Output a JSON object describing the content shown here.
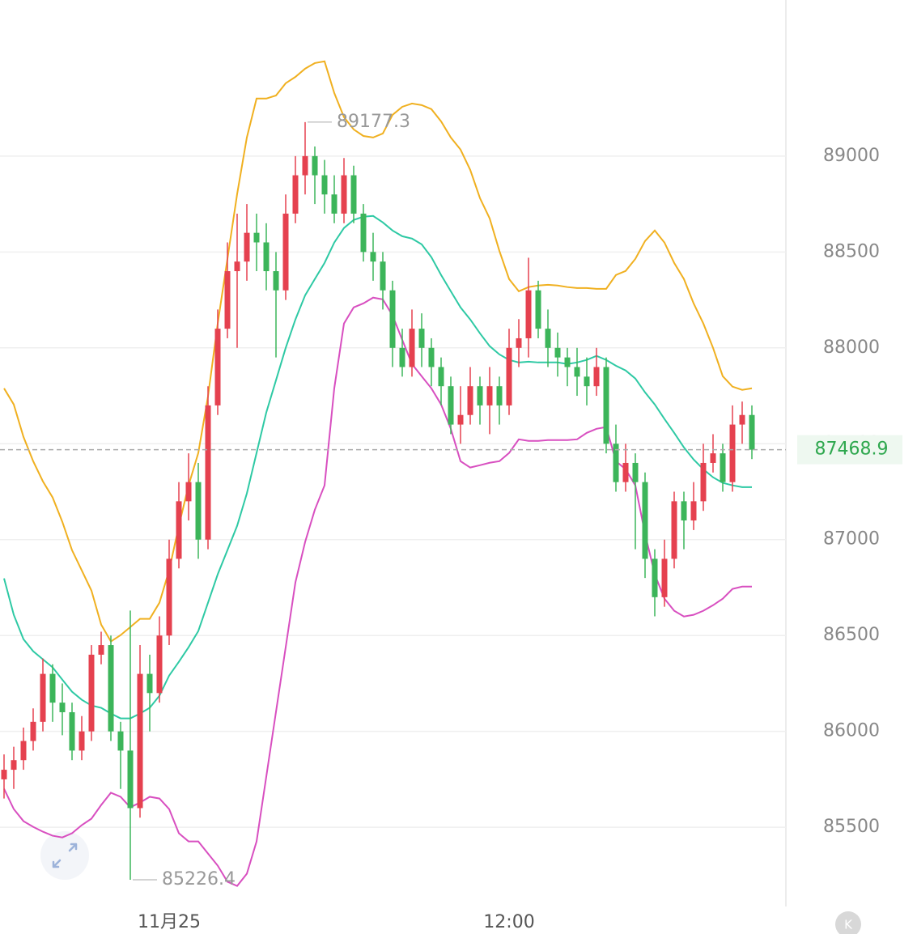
{
  "chart_data": {
    "type": "candlestick",
    "categories": [
      null,
      null,
      null,
      null,
      null,
      null,
      null,
      null,
      null,
      null,
      null,
      null,
      null,
      null,
      null,
      null,
      null,
      "11月25",
      null,
      null,
      null,
      null,
      null,
      null,
      null,
      null,
      null,
      null,
      null,
      null,
      null,
      null,
      null,
      null,
      null,
      null,
      null,
      null,
      null,
      null,
      null,
      null,
      null,
      null,
      null,
      null,
      null,
      null,
      null,
      null,
      null,
      null,
      "12:00",
      null,
      null,
      null,
      null,
      null,
      null,
      null,
      null,
      null,
      null,
      null,
      null,
      null,
      null,
      null,
      null,
      null,
      null,
      null,
      null,
      null,
      null,
      null,
      null,
      null
    ],
    "open": [
      85750,
      85800,
      85850,
      85950,
      86050,
      86300,
      86150,
      86100,
      85900,
      86000,
      86400,
      86450,
      86000,
      85900,
      85600,
      86300,
      86200,
      86500,
      86900,
      87200,
      87300,
      87000,
      87700,
      88100,
      88400,
      88450,
      88600,
      88550,
      88400,
      88300,
      88700,
      88900,
      89000,
      88900,
      88800,
      88700,
      88900,
      88700,
      88500,
      88450,
      88300,
      88000,
      87900,
      88100,
      88000,
      87900,
      87800,
      87600,
      87650,
      87800,
      87700,
      87800,
      87700,
      88000,
      88050,
      88300,
      88100,
      88000,
      87950,
      87900,
      87850,
      87800,
      87900,
      87500,
      87300,
      87400,
      87300,
      86900,
      86700,
      86900,
      87200,
      87100,
      87200,
      87400,
      87450,
      87300,
      87600,
      87650
    ],
    "high": [
      85880,
      85920,
      86020,
      86120,
      86380,
      86350,
      86250,
      86150,
      86080,
      86450,
      86520,
      86500,
      86050,
      86630,
      86450,
      86400,
      86600,
      87000,
      87300,
      87450,
      87400,
      87800,
      88200,
      88550,
      88700,
      88750,
      88700,
      88650,
      88500,
      88800,
      89000,
      89177.3,
      89050,
      88980,
      88900,
      88990,
      88950,
      88750,
      88600,
      88500,
      88350,
      88100,
      88200,
      88180,
      88050,
      87950,
      87850,
      87800,
      87900,
      87850,
      87900,
      87850,
      88100,
      88150,
      88470,
      88350,
      88200,
      88080,
      88000,
      88000,
      87950,
      88000,
      87950,
      87600,
      87500,
      87450,
      87350,
      86950,
      87000,
      87250,
      87250,
      87300,
      87500,
      87550,
      87500,
      87700,
      87720,
      87700
    ],
    "low": [
      85650,
      85700,
      85800,
      85900,
      86000,
      86050,
      85980,
      85850,
      85850,
      85950,
      86350,
      85950,
      85700,
      85226.4,
      85550,
      86000,
      86150,
      86450,
      86850,
      87100,
      86900,
      86950,
      87650,
      88050,
      88000,
      88350,
      88400,
      88300,
      87950,
      88250,
      88650,
      88800,
      88750,
      88700,
      88650,
      88650,
      88650,
      88450,
      88350,
      88200,
      87900,
      87850,
      87850,
      87900,
      87800,
      87700,
      87550,
      87500,
      87600,
      87600,
      87550,
      87600,
      87650,
      87900,
      87950,
      88050,
      87900,
      87850,
      87800,
      87750,
      87700,
      87750,
      87450,
      87250,
      87250,
      86950,
      86800,
      86600,
      86650,
      86850,
      86950,
      87050,
      87150,
      87350,
      87250,
      87250,
      87500,
      87420
    ],
    "close": [
      85800,
      85850,
      85950,
      86050,
      86300,
      86150,
      86100,
      85900,
      86000,
      86400,
      86450,
      86000,
      85900,
      85600,
      86300,
      86200,
      86500,
      86900,
      87200,
      87300,
      87000,
      87700,
      88100,
      88400,
      88450,
      88600,
      88550,
      88400,
      88300,
      88700,
      88900,
      89000,
      88900,
      88800,
      88700,
      88900,
      88700,
      88500,
      88450,
      88300,
      88000,
      87900,
      88100,
      88000,
      87900,
      87800,
      87600,
      87650,
      87800,
      87700,
      87800,
      87700,
      88000,
      88050,
      88300,
      88100,
      88000,
      87950,
      87900,
      87850,
      87800,
      87900,
      87500,
      87300,
      87400,
      87300,
      86900,
      86700,
      86900,
      87200,
      87100,
      87200,
      87400,
      87450,
      87300,
      87600,
      87650,
      87468.9
    ],
    "up_color": "#e5414f",
    "down_color": "#3cb55a",
    "bands": [
      {
        "color": "#f0b020",
        "values": [
          87789,
          87705,
          87536,
          87409,
          87304,
          87220,
          87093,
          86945,
          86840,
          86734,
          86557,
          86469,
          86502,
          86544,
          86587,
          86587,
          86671,
          86840,
          87072,
          87283,
          87452,
          87747,
          88127,
          88464,
          88802,
          89097,
          89300,
          89300,
          89316,
          89380,
          89413,
          89456,
          89485,
          89494,
          89329,
          89203,
          89139,
          89105,
          89097,
          89118,
          89215,
          89257,
          89274,
          89266,
          89245,
          89181,
          89097,
          89034,
          88928,
          88781,
          88675,
          88506,
          88359,
          88295,
          88317,
          88325,
          88329,
          88325,
          88317,
          88312,
          88312,
          88308,
          88308,
          88380,
          88401,
          88464,
          88557,
          88612,
          88549,
          88443,
          88359,
          88232,
          88127,
          88000,
          87852,
          87798,
          87781,
          87789
        ]
      },
      {
        "color": "#2ec9a4",
        "values": [
          86798,
          86608,
          86481,
          86418,
          86376,
          86334,
          86270,
          86207,
          86165,
          86135,
          86123,
          86093,
          86068,
          86068,
          86093,
          86123,
          86186,
          86291,
          86363,
          86439,
          86523,
          86671,
          86819,
          86945,
          87072,
          87241,
          87452,
          87663,
          87831,
          88000,
          88148,
          88274,
          88359,
          88443,
          88549,
          88625,
          88667,
          88684,
          88688,
          88654,
          88612,
          88582,
          88570,
          88540,
          88473,
          88380,
          88295,
          88211,
          88148,
          88076,
          88009,
          87966,
          87937,
          87924,
          87928,
          87924,
          87924,
          87924,
          87916,
          87924,
          87937,
          87958,
          87937,
          87907,
          87882,
          87840,
          87768,
          87705,
          87629,
          87557,
          87481,
          87418,
          87367,
          87325,
          87296,
          87283,
          87274,
          87274
        ]
      },
      {
        "color": "#d84fc0",
        "values": [
          85701,
          85595,
          85532,
          85502,
          85477,
          85456,
          85447,
          85469,
          85511,
          85545,
          85616,
          85680,
          85659,
          85604,
          85629,
          85659,
          85650,
          85595,
          85469,
          85426,
          85426,
          85363,
          85300,
          85216,
          85194,
          85258,
          85426,
          85764,
          86102,
          86439,
          86777,
          86988,
          87156,
          87283,
          87789,
          88127,
          88211,
          88232,
          88262,
          88253,
          88169,
          88042,
          87916,
          87852,
          87789,
          87705,
          87578,
          87409,
          87376,
          87388,
          87401,
          87409,
          87452,
          87523,
          87515,
          87515,
          87519,
          87519,
          87519,
          87523,
          87557,
          87578,
          87587,
          87409,
          87367,
          87283,
          87030,
          86819,
          86692,
          86629,
          86599,
          86608,
          86629,
          86658,
          86692,
          86743,
          86755,
          86755
        ]
      }
    ],
    "ylim": [
      85087,
      89814
    ],
    "yticks": [
      85500,
      86000,
      86500,
      87000,
      87500,
      88000,
      88500,
      89000
    ],
    "grid": true,
    "max_index": 31,
    "min_index": 13,
    "last_color": "#2fa84f",
    "watermark": "K"
  }
}
